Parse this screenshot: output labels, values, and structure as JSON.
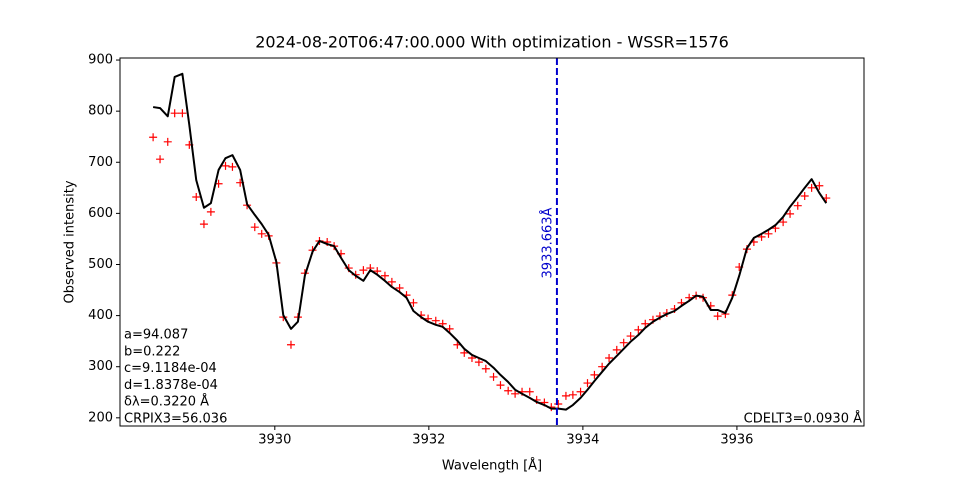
{
  "chart_data": {
    "type": "line",
    "title": "2024-08-20T06:47:00.000 With optimization - WSSR=1576",
    "x_label": "Wavelength [Å]",
    "y_label": "Observed intensity",
    "xlim": [
      3927.99,
      3937.65
    ],
    "ylim": [
      184,
      904
    ],
    "xticks": [
      3930,
      3932,
      3934,
      3936
    ],
    "yticks": [
      200,
      300,
      400,
      500,
      600,
      700,
      800,
      900
    ],
    "x": [
      3928.42,
      3928.51,
      3928.61,
      3928.7,
      3928.8,
      3928.89,
      3928.98,
      3929.08,
      3929.17,
      3929.27,
      3929.36,
      3929.45,
      3929.55,
      3929.64,
      3929.74,
      3929.83,
      3929.92,
      3930.02,
      3930.11,
      3930.21,
      3930.3,
      3930.39,
      3930.49,
      3930.58,
      3930.68,
      3930.77,
      3930.86,
      3930.96,
      3931.05,
      3931.15,
      3931.24,
      3931.33,
      3931.43,
      3931.52,
      3931.62,
      3931.71,
      3931.8,
      3931.9,
      3931.99,
      3932.09,
      3932.18,
      3932.27,
      3932.37,
      3932.46,
      3932.56,
      3932.65,
      3932.74,
      3932.84,
      3932.93,
      3933.03,
      3933.12,
      3933.21,
      3933.31,
      3933.4,
      3933.5,
      3933.59,
      3933.68,
      3933.78,
      3933.87,
      3933.97,
      3934.06,
      3934.15,
      3934.25,
      3934.34,
      3934.44,
      3934.53,
      3934.62,
      3934.72,
      3934.81,
      3934.91,
      3935.0,
      3935.09,
      3935.19,
      3935.28,
      3935.38,
      3935.47,
      3935.56,
      3935.66,
      3935.75,
      3935.85,
      3935.94,
      3936.03,
      3936.13,
      3936.22,
      3936.32,
      3936.41,
      3936.5,
      3936.6,
      3936.69,
      3936.79,
      3936.88,
      3936.97,
      3937.07,
      3937.16
    ],
    "series": [
      {
        "style": "markers",
        "color": "#ff0000",
        "values": [
          749,
          706,
          740,
          796,
          796,
          734,
          632,
          579,
          603,
          658,
          693,
          691,
          660,
          616,
          573,
          560,
          556,
          503,
          397,
          343,
          397,
          483,
          528,
          546,
          544,
          536,
          521,
          493,
          480,
          489,
          493,
          487,
          478,
          466,
          454,
          440,
          425,
          401,
          394,
          390,
          384,
          374,
          343,
          327,
          317,
          309,
          296,
          280,
          264,
          253,
          247,
          251,
          251,
          235,
          230,
          221,
          227,
          243,
          245,
          251,
          268,
          284,
          300,
          317,
          333,
          347,
          360,
          372,
          384,
          392,
          399,
          405,
          413,
          425,
          435,
          439,
          435,
          419,
          399,
          403,
          440,
          495,
          530,
          544,
          554,
          560,
          571,
          583,
          599,
          615,
          634,
          650,
          654,
          630
        ]
      },
      {
        "style": "line",
        "color": "#000000",
        "values": [
          808,
          806,
          790,
          867,
          873,
          773,
          665,
          611,
          620,
          685,
          708,
          714,
          685,
          618,
          597,
          579,
          558,
          505,
          401,
          374,
          388,
          478,
          525,
          546,
          540,
          536,
          513,
          489,
          478,
          468,
          489,
          480,
          468,
          456,
          446,
          435,
          409,
          397,
          388,
          382,
          378,
          366,
          351,
          335,
          323,
          317,
          311,
          298,
          284,
          270,
          255,
          247,
          239,
          231,
          225,
          218,
          218,
          216,
          225,
          239,
          255,
          272,
          290,
          306,
          321,
          335,
          349,
          362,
          376,
          388,
          396,
          403,
          409,
          419,
          429,
          439,
          437,
          411,
          411,
          405,
          435,
          478,
          532,
          552,
          560,
          568,
          577,
          593,
          613,
          632,
          650,
          667,
          640,
          620
        ]
      }
    ],
    "vline": {
      "x": 3933.663,
      "color": "#0000cc",
      "label": "3933.663Å"
    },
    "annotations_left": [
      "a=94.087",
      "b=0.222",
      "c=9.1184e-04",
      "d=1.8378e-04",
      "δλ=0.3220 Å",
      "CRPIX3=56.036"
    ],
    "annotation_right": "CDELT3=0.0930 Å"
  }
}
